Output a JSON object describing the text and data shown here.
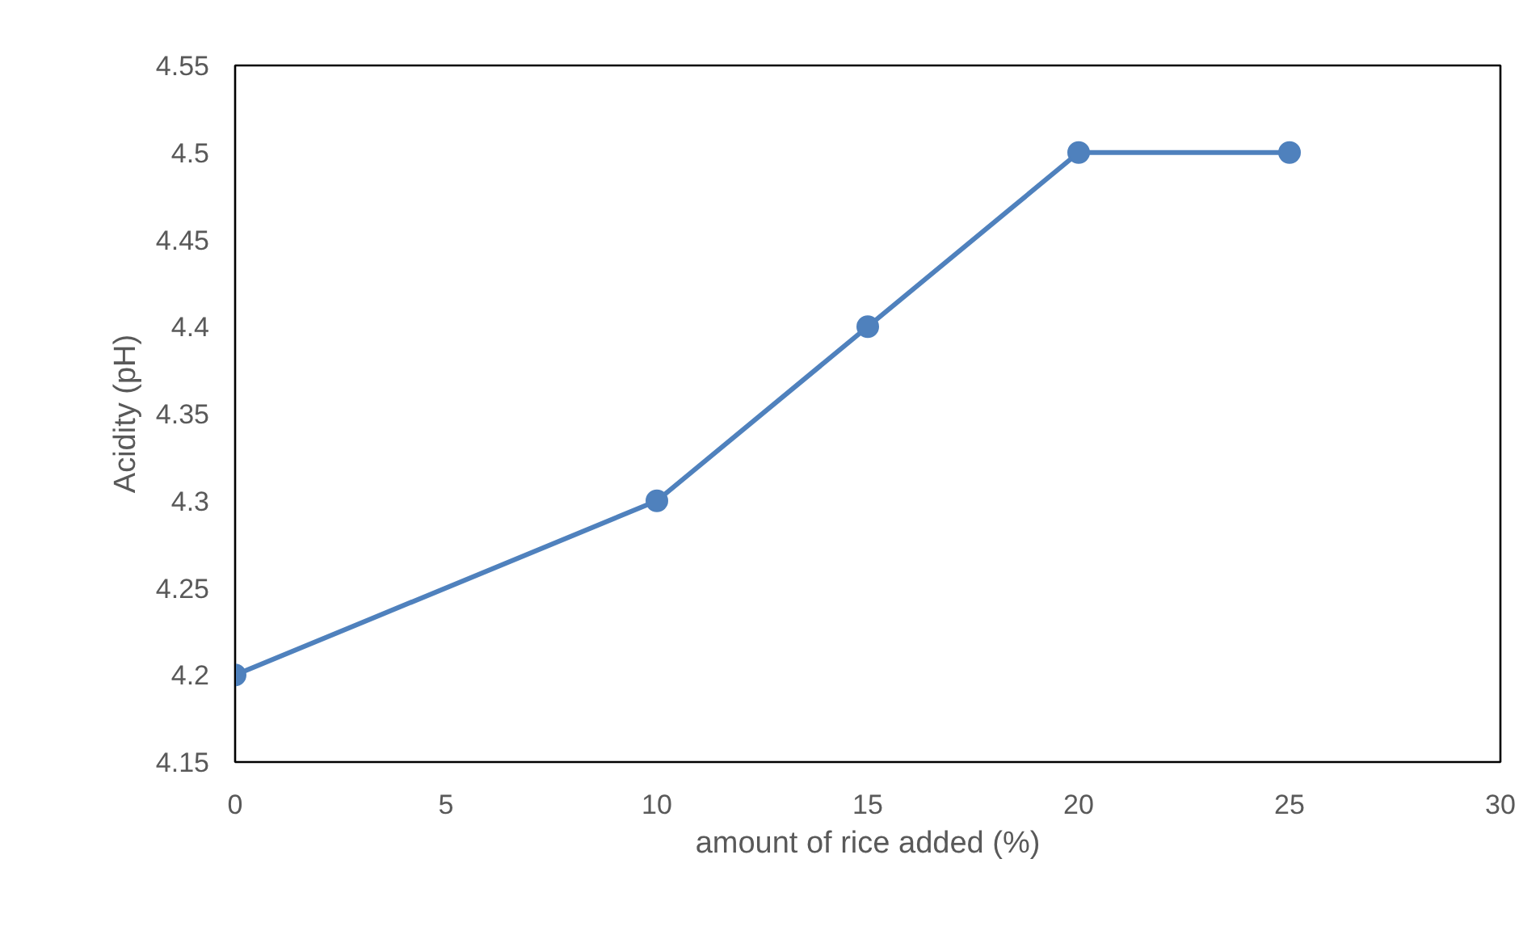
{
  "chart_data": {
    "type": "line",
    "xlabel": "amount of rice added (%)",
    "ylabel": "Acidity (pH)",
    "series": [
      {
        "color": "#4f81bd",
        "x": [
          0,
          10,
          15,
          20,
          25
        ],
        "values": [
          4.2,
          4.3,
          4.4,
          4.5,
          4.5
        ]
      }
    ],
    "xlim": [
      0,
      30
    ],
    "xticks": [
      0,
      5,
      10,
      15,
      20,
      25,
      30
    ],
    "ylim": [
      4.15,
      4.55
    ],
    "yticks": [
      4.15,
      4.2,
      4.25,
      4.3,
      4.35,
      4.4,
      4.45,
      4.5,
      4.55
    ],
    "grid": false,
    "marker": "circle",
    "line_style": "solid"
  }
}
